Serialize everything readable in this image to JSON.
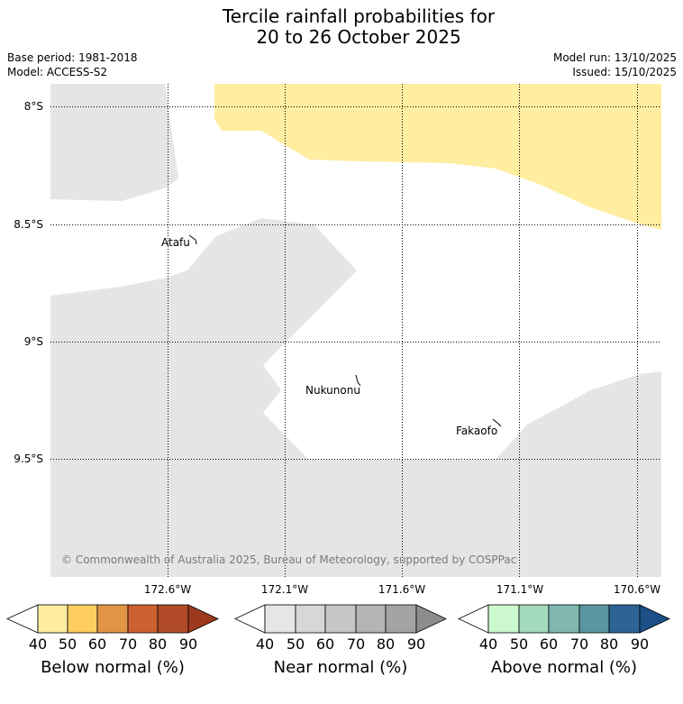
{
  "title_line1": "Tercile rainfall probabilities for",
  "title_line2": "20 to 26 October 2025",
  "base_period": "Base period: 1981-2018",
  "model": "Model: ACCESS-S2",
  "model_run": "Model run: 13/10/2025",
  "issued": "Issued: 15/10/2025",
  "lat_labels": [
    "8°S",
    "8.5°S",
    "9°S",
    "9.5°S"
  ],
  "lon_labels": [
    "172.6°W",
    "172.1°W",
    "171.6°W",
    "171.1°W",
    "170.6°W"
  ],
  "places": [
    "Atafu",
    "Nukunonu",
    "Fakaofo"
  ],
  "copyright": "© Commonwealth of Australia 2025, Bureau of Meteorology, supported by COSPPac",
  "colorbars": [
    {
      "title": "Below normal (%)",
      "ticks": [
        "40",
        "50",
        "60",
        "70",
        "80",
        "90"
      ],
      "colors": [
        "#ffffff",
        "#feeda0",
        "#fdcd60",
        "#e19444",
        "#cb6130",
        "#b04a26",
        "#9d3a1d"
      ]
    },
    {
      "title": "Near normal (%)",
      "ticks": [
        "40",
        "50",
        "60",
        "70",
        "80",
        "90"
      ],
      "colors": [
        "#ffffff",
        "#e6e6e6",
        "#d7d7d7",
        "#c6c6c6",
        "#b4b4b4",
        "#a3a3a3",
        "#8c8c8c"
      ]
    },
    {
      "title": "Above normal (%)",
      "ticks": [
        "40",
        "50",
        "60",
        "70",
        "80",
        "90"
      ],
      "colors": [
        "#ffffff",
        "#ccf8cd",
        "#a3d9bd",
        "#80b8b0",
        "#5a96a0",
        "#2c6496",
        "#1c4f86"
      ]
    }
  ]
}
